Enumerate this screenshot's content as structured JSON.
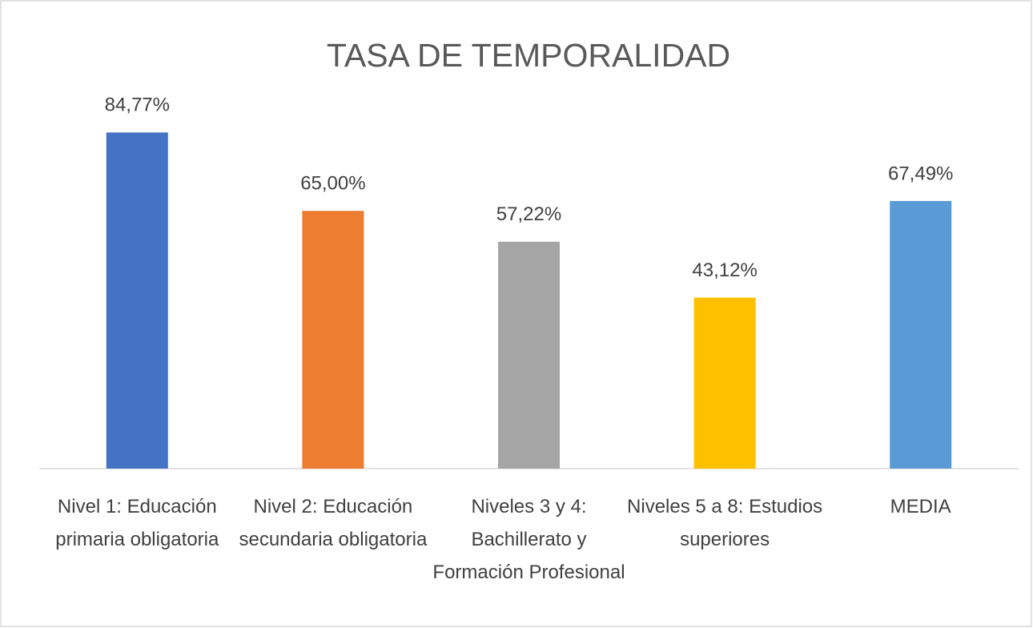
{
  "chart_data": {
    "type": "bar",
    "title": "TASA DE TEMPORALIDAD",
    "categories": [
      "Nivel 1: Educación primaria obligatoria",
      "Nivel 2: Educación secundaria obligatoria",
      "Niveles 3 y 4: Bachillerato y Formación Profesional",
      "Niveles 5 a 8: Estudios superiores",
      "MEDIA"
    ],
    "values": [
      84.77,
      65.0,
      57.22,
      43.12,
      67.49
    ],
    "value_labels": [
      "84,77%",
      "65,00%",
      "57,22%",
      "43,12%",
      "67,49%"
    ],
    "colors": [
      "#4472c4",
      "#ed7d31",
      "#a5a5a5",
      "#ffc000",
      "#5b9bd5"
    ],
    "ylim": [
      0,
      100
    ]
  }
}
